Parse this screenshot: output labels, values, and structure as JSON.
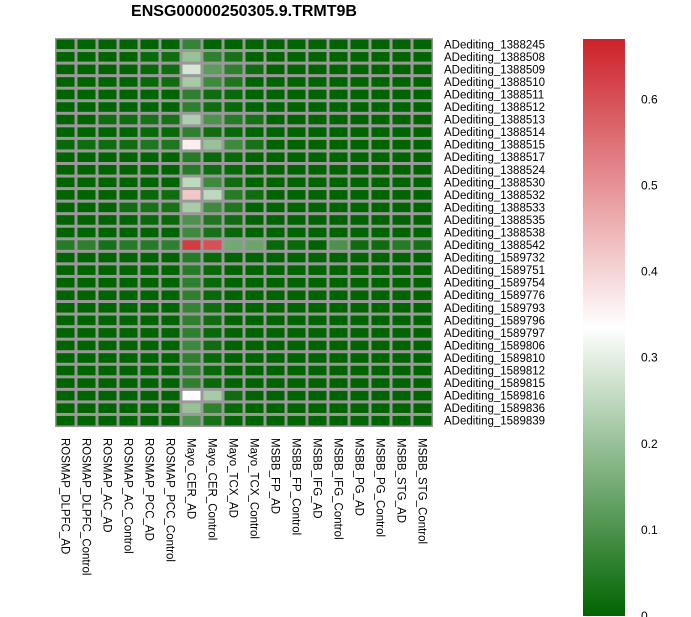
{
  "chart_data": {
    "type": "heatmap",
    "title": "ENSG00000250305.9.TRMT9B",
    "columns": [
      "ROSMAP_DLPFC_AD",
      "ROSMAP_DLPFC_Control",
      "ROSMAP_AC_AD",
      "ROSMAP_AC_Control",
      "ROSMAP_PCC_AD",
      "ROSMAP_PCC_Control",
      "Mayo_CER_AD",
      "Mayo_CER_Control",
      "Mayo_TCX_AD",
      "Mayo_TCX_Control",
      "MSBB_FP_AD",
      "MSBB_FP_Control",
      "MSBB_IFG_AD",
      "MSBB_IFG_Control",
      "MSBB_PG_AD",
      "MSBB_PG_Control",
      "MSBB_STG_AD",
      "MSBB_STG_Control"
    ],
    "rows": [
      "ADediting_1388245",
      "ADediting_1388508",
      "ADediting_1388509",
      "ADediting_1388510",
      "ADediting_1388511",
      "ADediting_1388512",
      "ADediting_1388513",
      "ADediting_1388514",
      "ADediting_1388515",
      "ADediting_1388517",
      "ADediting_1388524",
      "ADediting_1388530",
      "ADediting_1388532",
      "ADediting_1388533",
      "ADediting_1388535",
      "ADediting_1388538",
      "ADediting_1388542",
      "ADediting_1589732",
      "ADediting_1589751",
      "ADediting_1589754",
      "ADediting_1589776",
      "ADediting_1589793",
      "ADediting_1589796",
      "ADediting_1589797",
      "ADediting_1589806",
      "ADediting_1589810",
      "ADediting_1589812",
      "ADediting_1589815",
      "ADediting_1589816",
      "ADediting_1589836",
      "ADediting_1589839"
    ],
    "values": [
      [
        0,
        0,
        0,
        0,
        0,
        0,
        0.07,
        0,
        0,
        0,
        0,
        0,
        0,
        0,
        0,
        0,
        0,
        0
      ],
      [
        0,
        0,
        0,
        0,
        0.01,
        0.02,
        0.2,
        0.06,
        0.03,
        0,
        0,
        0,
        0,
        0,
        0,
        0,
        0,
        0
      ],
      [
        0,
        0,
        0,
        0,
        0.01,
        0.02,
        0.28,
        0.12,
        0.06,
        0.02,
        0,
        0,
        0,
        0,
        0,
        0,
        0,
        0
      ],
      [
        0,
        0,
        0,
        0,
        0.01,
        0.02,
        0.22,
        0.08,
        0.04,
        0,
        0,
        0,
        0,
        0,
        0,
        0,
        0,
        0
      ],
      [
        0,
        0,
        0,
        0,
        0,
        0,
        0.06,
        0.02,
        0.01,
        0,
        0,
        0,
        0,
        0,
        0,
        0,
        0,
        0
      ],
      [
        0,
        0,
        0,
        0,
        0,
        0,
        0.06,
        0.02,
        0.01,
        0,
        0,
        0,
        0,
        0,
        0,
        0,
        0,
        0
      ],
      [
        0,
        0,
        0.02,
        0.02,
        0.03,
        0.03,
        0.23,
        0.1,
        0.05,
        0.03,
        0,
        0,
        0,
        0,
        0,
        0,
        0,
        0
      ],
      [
        0,
        0,
        0,
        0,
        0.01,
        0.01,
        0.06,
        0.02,
        0.01,
        0,
        0,
        0,
        0,
        0,
        0,
        0,
        0,
        0
      ],
      [
        0.01,
        0.02,
        0.02,
        0.02,
        0.04,
        0.04,
        0.36,
        0.2,
        0.08,
        0.03,
        0,
        0,
        0,
        0,
        0,
        0,
        0,
        0
      ],
      [
        0,
        0,
        0,
        0,
        0,
        0,
        0.05,
        0.01,
        0.01,
        0,
        0,
        0,
        0,
        0,
        0,
        0,
        0,
        0
      ],
      [
        0,
        0,
        0,
        0,
        0,
        0,
        0.05,
        0.02,
        0.01,
        0,
        0,
        0,
        0,
        0,
        0,
        0,
        0,
        0
      ],
      [
        0,
        0,
        0,
        0,
        0,
        0,
        0.25,
        0.08,
        0.02,
        0,
        0,
        0,
        0,
        0,
        0,
        0,
        0,
        0
      ],
      [
        0,
        0,
        0,
        0,
        0.01,
        0.02,
        0.42,
        0.25,
        0.05,
        0.02,
        0,
        0,
        0,
        0,
        0,
        0,
        0,
        0
      ],
      [
        0,
        0,
        0,
        0.02,
        0.03,
        0.03,
        0.22,
        0.08,
        0.04,
        0,
        0,
        0,
        0,
        0,
        0,
        0,
        0,
        0
      ],
      [
        0,
        0,
        0,
        0,
        0.01,
        0.01,
        0.1,
        0.04,
        0.02,
        0,
        0,
        0,
        0,
        0,
        0,
        0,
        0,
        0
      ],
      [
        0,
        0,
        0,
        0,
        0,
        0,
        0.08,
        0.03,
        0.01,
        0,
        0,
        0,
        0,
        0,
        0,
        0,
        0,
        0
      ],
      [
        0.05,
        0.06,
        0.03,
        0.05,
        0.05,
        0.06,
        0.63,
        0.6,
        0.15,
        0.14,
        0.01,
        0.01,
        0,
        0.1,
        0.02,
        0.02,
        0.05,
        0.03
      ],
      [
        0,
        0,
        0,
        0,
        0,
        0,
        0.05,
        0.01,
        0,
        0,
        0,
        0,
        0,
        0,
        0,
        0,
        0,
        0
      ],
      [
        0,
        0,
        0,
        0,
        0,
        0,
        0.05,
        0.01,
        0,
        0,
        0,
        0,
        0,
        0,
        0,
        0,
        0,
        0
      ],
      [
        0,
        0,
        0,
        0,
        0,
        0,
        0.06,
        0.01,
        0,
        0,
        0,
        0,
        0,
        0,
        0,
        0,
        0,
        0
      ],
      [
        0,
        0,
        0,
        0,
        0,
        0,
        0.06,
        0.01,
        0,
        0,
        0,
        0,
        0,
        0,
        0,
        0,
        0,
        0
      ],
      [
        0,
        0,
        0,
        0,
        0,
        0,
        0.07,
        0.02,
        0,
        0,
        0,
        0,
        0,
        0,
        0,
        0,
        0,
        0
      ],
      [
        0,
        0,
        0,
        0,
        0,
        0,
        0.06,
        0.02,
        0,
        0,
        0,
        0,
        0,
        0,
        0,
        0,
        0,
        0
      ],
      [
        0,
        0,
        0,
        0,
        0,
        0,
        0.06,
        0.01,
        0,
        0,
        0,
        0,
        0,
        0,
        0,
        0,
        0,
        0
      ],
      [
        0,
        0,
        0,
        0,
        0,
        0,
        0.08,
        0.02,
        0,
        0,
        0,
        0,
        0,
        0,
        0,
        0,
        0,
        0
      ],
      [
        0,
        0,
        0,
        0,
        0,
        0,
        0.06,
        0.01,
        0,
        0,
        0,
        0,
        0,
        0,
        0,
        0,
        0,
        0
      ],
      [
        0,
        0,
        0,
        0,
        0,
        0,
        0.06,
        0.01,
        0,
        0,
        0,
        0,
        0,
        0,
        0,
        0,
        0,
        0
      ],
      [
        0,
        0,
        0,
        0,
        0,
        0,
        0.06,
        0.01,
        0,
        0,
        0,
        0,
        0,
        0,
        0,
        0,
        0,
        0
      ],
      [
        0,
        0,
        0,
        0,
        0,
        0,
        0.34,
        0.22,
        0.02,
        0,
        0,
        0,
        0,
        0,
        0,
        0,
        0,
        0
      ],
      [
        0,
        0,
        0,
        0,
        0,
        0,
        0.2,
        0.06,
        0.01,
        0,
        0,
        0,
        0,
        0,
        0,
        0,
        0,
        0
      ],
      [
        0,
        0,
        0,
        0,
        0,
        0,
        0.1,
        0.03,
        0,
        0,
        0,
        0,
        0,
        0,
        0,
        0,
        0,
        0
      ]
    ],
    "color_scale": {
      "min": 0,
      "max": 0.67,
      "mid": 0.335,
      "low_color": "#006400",
      "mid_color": "#ffffff",
      "high_color": "#cc2229",
      "ticks": [
        "0",
        "0.1",
        "0.2",
        "0.3",
        "0.4",
        "0.5",
        "0.6"
      ]
    },
    "cell_border_color": "#999999",
    "legend_position": "right"
  }
}
